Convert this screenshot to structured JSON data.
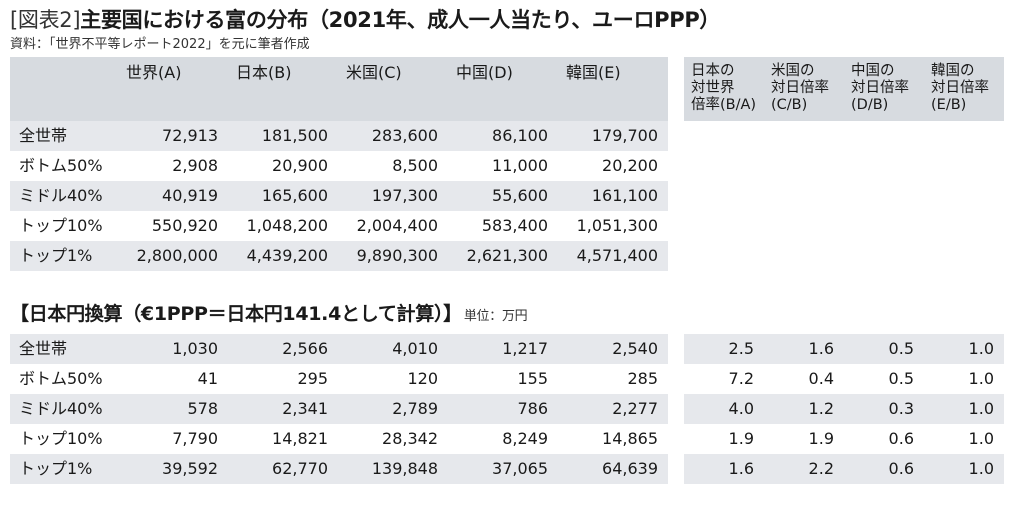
{
  "title": {
    "figure_label": "[図表2]",
    "text": "主要国における富の分布（2021年、成人一人当たり、ユーロPPP）"
  },
  "source": "資料：「世界不平等レポート2022」を元に筆者作成",
  "header": {
    "columns": [
      "世界(A)",
      "日本(B)",
      "米国(C)",
      "中国(D)",
      "韓国(E)"
    ],
    "ratios": [
      "日本の\n対世界\n倍率(B/A)",
      "米国の\n対日倍率\n(C/B)",
      "中国の\n対日倍率\n(D/B)",
      "韓国の\n対日倍率\n(E/B)"
    ]
  },
  "table1": {
    "rows": [
      {
        "label": "全世帯",
        "values": [
          "72,913",
          "181,500",
          "283,600",
          "86,100",
          "179,700"
        ]
      },
      {
        "label": "ボトム50%",
        "values": [
          "2,908",
          "20,900",
          "8,500",
          "11,000",
          "20,200"
        ]
      },
      {
        "label": "ミドル40%",
        "values": [
          "40,919",
          "165,600",
          "197,300",
          "55,600",
          "161,100"
        ]
      },
      {
        "label": "トップ10%",
        "values": [
          "550,920",
          "1,048,200",
          "2,004,400",
          "583,400",
          "1,051,300"
        ]
      },
      {
        "label": "トップ1%",
        "values": [
          "2,800,000",
          "4,439,200",
          "9,890,300",
          "2,621,300",
          "4,571,400"
        ]
      }
    ]
  },
  "section2": {
    "title": "【日本円換算（€1PPP＝日本円141.4として計算）】",
    "unit": "単位：万円"
  },
  "table2": {
    "rows": [
      {
        "label": "全世帯",
        "values": [
          "1,030",
          "2,566",
          "4,010",
          "1,217",
          "2,540"
        ],
        "ratios": [
          "2.5",
          "1.6",
          "0.5",
          "1.0"
        ]
      },
      {
        "label": "ボトム50%",
        "values": [
          "41",
          "295",
          "120",
          "155",
          "285"
        ],
        "ratios": [
          "7.2",
          "0.4",
          "0.5",
          "1.0"
        ]
      },
      {
        "label": "ミドル40%",
        "values": [
          "578",
          "2,341",
          "2,789",
          "786",
          "2,277"
        ],
        "ratios": [
          "4.0",
          "1.2",
          "0.3",
          "1.0"
        ]
      },
      {
        "label": "トップ10%",
        "values": [
          "7,790",
          "14,821",
          "28,342",
          "8,249",
          "14,865"
        ],
        "ratios": [
          "1.9",
          "1.9",
          "0.6",
          "1.0"
        ]
      },
      {
        "label": "トップ1%",
        "values": [
          "39,592",
          "62,770",
          "139,848",
          "37,065",
          "64,639"
        ],
        "ratios": [
          "1.6",
          "2.2",
          "0.6",
          "1.0"
        ]
      }
    ]
  }
}
